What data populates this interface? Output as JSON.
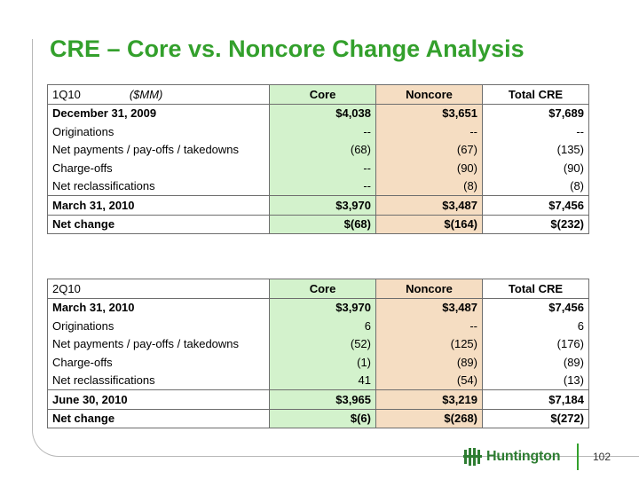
{
  "title": "CRE – Core vs. Noncore Change Analysis",
  "tables": [
    {
      "period": "1Q10",
      "unit": "($MM)",
      "columns": [
        "Core",
        "Noncore",
        "Total CRE"
      ],
      "rows": [
        {
          "label": "December 31, 2009",
          "values": [
            "$4,038",
            "$3,651",
            "$7,689"
          ]
        },
        {
          "label": "Originations",
          "values": [
            "--",
            "--",
            "--"
          ]
        },
        {
          "label": "Net payments / pay-offs / takedowns",
          "values": [
            "(68)",
            "(67)",
            "(135)"
          ]
        },
        {
          "label": "Charge-offs",
          "values": [
            "--",
            "(90)",
            "(90)"
          ]
        },
        {
          "label": "Net reclassifications",
          "values": [
            "--",
            "(8)",
            "(8)"
          ]
        },
        {
          "label": "March 31, 2010",
          "values": [
            "$3,970",
            "$3,487",
            "$7,456"
          ]
        },
        {
          "label": "Net change",
          "values": [
            "$(68)",
            "$(164)",
            "$(232)"
          ]
        }
      ]
    },
    {
      "period": "2Q10",
      "unit": "",
      "columns": [
        "Core",
        "Noncore",
        "Total CRE"
      ],
      "rows": [
        {
          "label": "March 31, 2010",
          "values": [
            "$3,970",
            "$3,487",
            "$7,456"
          ]
        },
        {
          "label": "Originations",
          "values": [
            "6",
            "--",
            "6"
          ]
        },
        {
          "label": "Net payments / pay-offs / takedowns",
          "values": [
            "(52)",
            "(125)",
            "(176)"
          ]
        },
        {
          "label": "Charge-offs",
          "values": [
            "(1)",
            "(89)",
            "(89)"
          ]
        },
        {
          "label": "Net reclassifications",
          "values": [
            "41",
            "(54)",
            "(13)"
          ]
        },
        {
          "label": "June 30, 2010",
          "values": [
            "$3,965",
            "$3,219",
            "$7,184"
          ]
        },
        {
          "label": "Net change",
          "values": [
            "$(6)",
            "$(268)",
            "$(272)"
          ]
        }
      ]
    }
  ],
  "footer": {
    "logo_text": "Huntington",
    "logo_icon": "huntington-logo-icon",
    "page_number": "102"
  },
  "colors": {
    "title": "#33a02c",
    "core_fill": "#d3f2cc",
    "noncore_fill": "#f5ddc2"
  }
}
